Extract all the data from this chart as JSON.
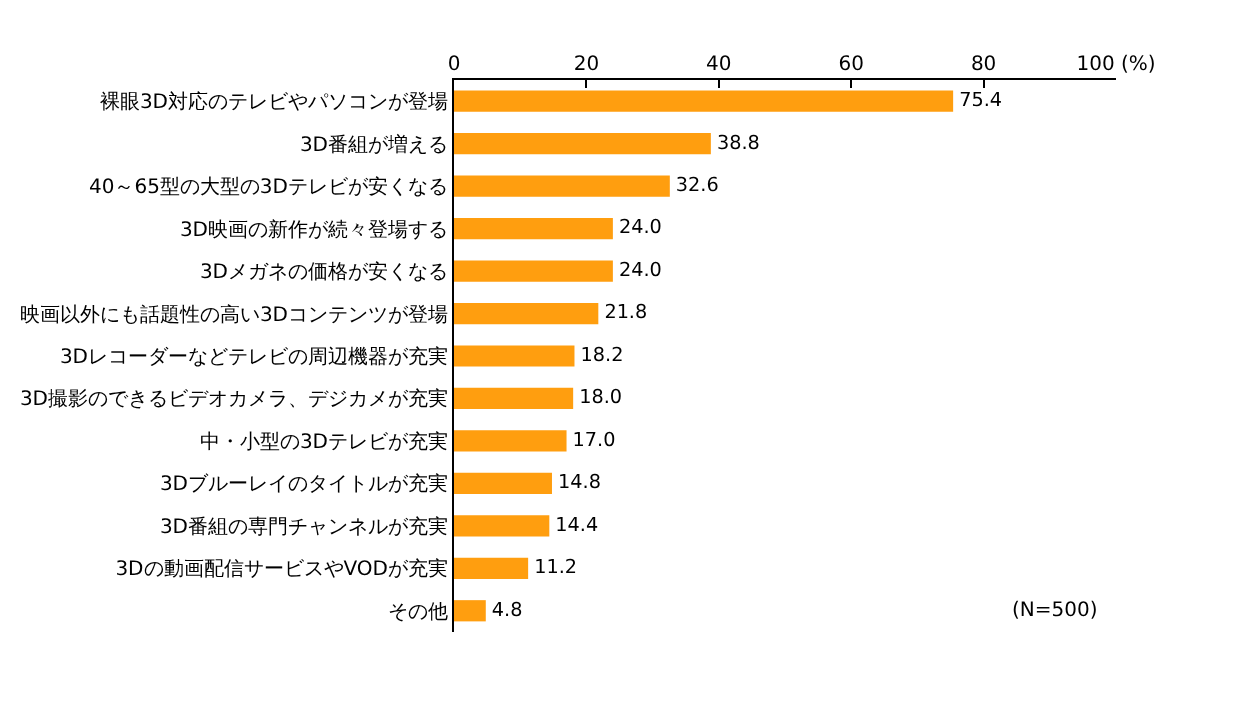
{
  "chart_data": {
    "type": "bar",
    "orientation": "horizontal",
    "categories": [
      "裸眼3D対応のテレビやパソコンが登場",
      "3D番組が増える",
      "40～65型の大型の3Dテレビが安くなる",
      "3D映画の新作が続々登場する",
      "3Dメガネの価格が安くなる",
      "映画以外にも話題性の高い3Dコンテンツが登場",
      "3Dレコーダーなどテレビの周辺機器が充実",
      "3D撮影のできるビデオカメラ、デジカメが充実",
      "中・小型の3Dテレビが充実",
      "3Dブルーレイのタイトルが充実",
      "3D番組の専門チャンネルが充実",
      "3Dの動画配信サービスやVODが充実",
      "その他"
    ],
    "values": [
      75.4,
      38.8,
      32.6,
      24.0,
      24.0,
      21.8,
      18.2,
      18.0,
      17.0,
      14.8,
      14.4,
      11.2,
      4.8
    ],
    "value_labels": [
      "75.4",
      "38.8",
      "32.6",
      "24.0",
      "24.0",
      "21.8",
      "18.2",
      "18.0",
      "17.0",
      "14.8",
      "14.4",
      "11.2",
      "4.8"
    ],
    "color": "#ff9e0f",
    "xlim": [
      0,
      100
    ],
    "xticks": [
      0,
      20,
      40,
      60,
      80,
      {
        "value": 100,
        "label": "100 (%)"
      }
    ],
    "grid": false,
    "legend": false,
    "annotations": [
      "(N=500)"
    ]
  }
}
